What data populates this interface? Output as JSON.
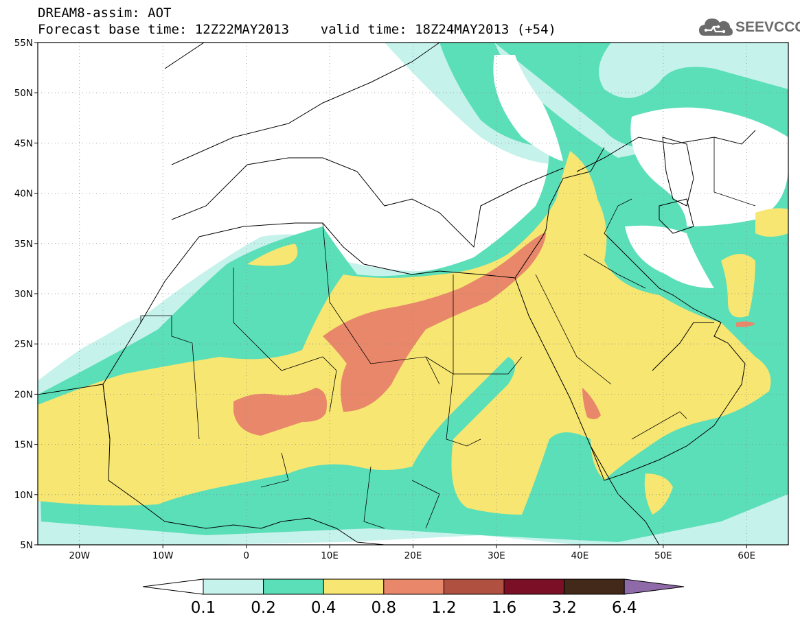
{
  "header": {
    "title_line1": "DREAM8-assim: AOT",
    "title_line2": "Forecast base time: 12Z22MAY2013    valid time: 18Z24MAY2013 (+54)"
  },
  "logo": {
    "text": "SEEVCCC",
    "icon": "cloud-icon",
    "color": "#6b6b6b"
  },
  "map": {
    "lon_range": [
      -25,
      65
    ],
    "lat_range": [
      5,
      55
    ],
    "lat_ticks": [
      "55N",
      "50N",
      "45N",
      "40N",
      "35N",
      "30N",
      "25N",
      "20N",
      "15N",
      "10N",
      "5N"
    ],
    "lon_ticks": [
      "20W",
      "10W",
      "0",
      "10E",
      "20E",
      "30E",
      "40E",
      "50E",
      "60E"
    ],
    "gridlines": "dotted"
  },
  "legend": {
    "levels": [
      "0.1",
      "0.2",
      "0.4",
      "0.8",
      "1.2",
      "1.6",
      "3.2",
      "6.4"
    ],
    "colors": [
      "#ffffff",
      "#c6f2ec",
      "#5bdfb8",
      "#f7e671",
      "#e8876a",
      "#b05040",
      "#7a0f25",
      "#43291a",
      "#8f6aa8"
    ]
  }
}
